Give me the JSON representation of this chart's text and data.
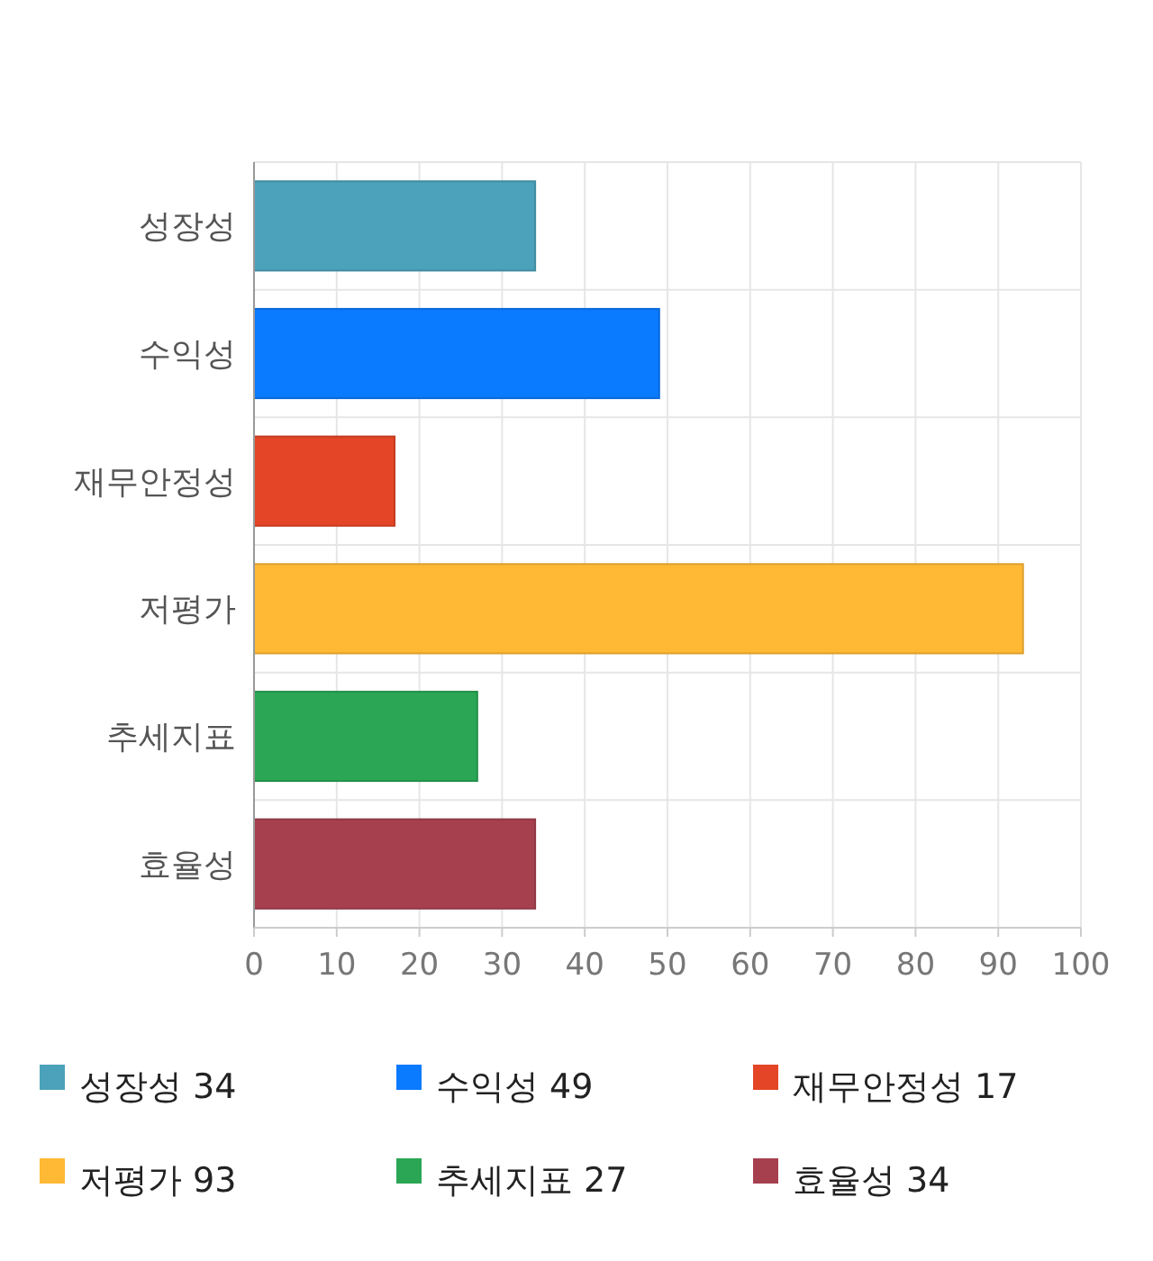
{
  "chart_data": {
    "type": "bar",
    "orientation": "horizontal",
    "stacked": true,
    "categories": [
      "성장성",
      "수익성",
      "재무안정성",
      "저평가",
      "추세지표",
      "효율성"
    ],
    "series": [
      {
        "name": "성장성 34",
        "color": "#4ba2ba",
        "values": [
          34,
          null,
          null,
          null,
          null,
          null
        ]
      },
      {
        "name": "수익성 49",
        "color": "#0a7aff",
        "values": [
          null,
          49,
          null,
          null,
          null,
          null
        ]
      },
      {
        "name": "재무안정성 17",
        "color": "#e34526",
        "values": [
          null,
          null,
          17,
          null,
          null,
          null
        ]
      },
      {
        "name": "저평가 93",
        "color": "#ffb935",
        "values": [
          null,
          null,
          null,
          93,
          null,
          null
        ]
      },
      {
        "name": "추세지표 27",
        "color": "#2aa655",
        "values": [
          null,
          null,
          null,
          null,
          27,
          null
        ]
      },
      {
        "name": "효율성 34",
        "color": "#a6404f",
        "values": [
          null,
          null,
          null,
          null,
          null,
          34
        ]
      }
    ],
    "xlim": [
      0,
      100
    ],
    "xticks": [
      0,
      10,
      20,
      30,
      40,
      50,
      60,
      70,
      80,
      90,
      100
    ],
    "grid": true,
    "legend": "bottom"
  }
}
